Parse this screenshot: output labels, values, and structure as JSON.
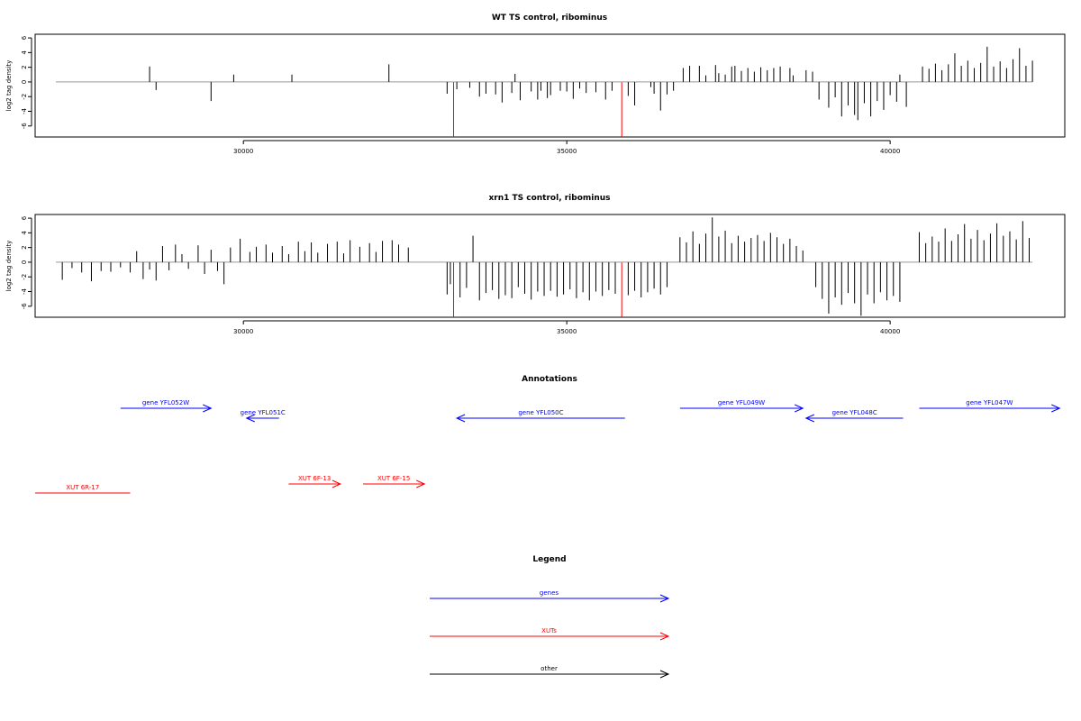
{
  "colors": {
    "axis": "#000000",
    "baseline": "#999999",
    "bar": "#000000",
    "marker": "#ff0000",
    "gene": "#0000ff",
    "xut": "#ff0000",
    "other": "#000000"
  },
  "annotations": {
    "title": "Annotations",
    "genes": [
      {
        "label": "gene YFL052W",
        "start": 28100,
        "end": 29500,
        "strand": "+",
        "row": 0
      },
      {
        "label": "gene YFL051C",
        "start": 30050,
        "end": 30550,
        "strand": "-",
        "row": 1
      },
      {
        "label": "gene YFL050C",
        "start": 33300,
        "end": 35900,
        "strand": "-",
        "row": 1
      },
      {
        "label": "gene YFL049W",
        "start": 36750,
        "end": 38650,
        "strand": "+",
        "row": 0
      },
      {
        "label": "gene YFL048C",
        "start": 38700,
        "end": 40200,
        "strand": "-",
        "row": 1
      },
      {
        "label": "gene YFL047W",
        "start": 40450,
        "end": 42620,
        "strand": "+",
        "row": 0
      }
    ],
    "xuts": [
      {
        "label": "XUT 6R-17",
        "start": 26780,
        "end": 28250,
        "strand": "none",
        "row": 1
      },
      {
        "label": "XUT 6F-13",
        "start": 30700,
        "end": 31500,
        "strand": "+",
        "row": 0
      },
      {
        "label": "XUT 6F-15",
        "start": 31850,
        "end": 32800,
        "strand": "+",
        "row": 0
      }
    ]
  },
  "legend": {
    "title": "Legend",
    "items": [
      {
        "label": "genes",
        "color": "gene"
      },
      {
        "label": "XUTs",
        "color": "xut"
      },
      {
        "label": "other",
        "color": "other"
      }
    ]
  },
  "chart_data": [
    {
      "type": "bar",
      "title": "WT TS control, ribominus",
      "ylabel": "log2 tag density",
      "xlim": [
        26780,
        42700
      ],
      "ylim": [
        -7.5,
        6.5
      ],
      "xticks": [
        30000,
        35000,
        40000
      ],
      "yticks": [
        -6,
        -4,
        -2,
        0,
        2,
        4,
        6
      ],
      "baseline": [
        27100,
        42200
      ],
      "markers": [
        33250,
        35850
      ],
      "bars": [
        [
          28550,
          2.1
        ],
        [
          28650,
          -1.1
        ],
        [
          29500,
          -2.6
        ],
        [
          29850,
          1.0
        ],
        [
          30750,
          1.0
        ],
        [
          32250,
          2.4
        ],
        [
          33150,
          -1.6
        ],
        [
          33300,
          -1.0
        ],
        [
          33500,
          -0.8
        ],
        [
          33650,
          -2.0
        ],
        [
          33750,
          -1.6
        ],
        [
          33900,
          -1.7
        ],
        [
          34000,
          -2.8
        ],
        [
          34150,
          -1.5
        ],
        [
          34200,
          1.1
        ],
        [
          34280,
          -2.5
        ],
        [
          34450,
          -1.3
        ],
        [
          34550,
          -2.4
        ],
        [
          34600,
          -1.2
        ],
        [
          34700,
          -2.2
        ],
        [
          34750,
          -1.8
        ],
        [
          34900,
          -1.2
        ],
        [
          35000,
          -1.3
        ],
        [
          35100,
          -2.3
        ],
        [
          35200,
          -0.9
        ],
        [
          35300,
          -1.5
        ],
        [
          35450,
          -1.4
        ],
        [
          35600,
          -2.4
        ],
        [
          35700,
          -1.2
        ],
        [
          35950,
          -1.9
        ],
        [
          36050,
          -3.2
        ],
        [
          36300,
          -0.7
        ],
        [
          36350,
          -1.6
        ],
        [
          36450,
          -3.9
        ],
        [
          36550,
          -1.7
        ],
        [
          36650,
          -1.2
        ],
        [
          36800,
          1.9
        ],
        [
          36900,
          2.2
        ],
        [
          37050,
          2.2
        ],
        [
          37150,
          0.9
        ],
        [
          37300,
          2.3
        ],
        [
          37350,
          1.2
        ],
        [
          37450,
          1.0
        ],
        [
          37550,
          2.1
        ],
        [
          37600,
          2.2
        ],
        [
          37700,
          1.5
        ],
        [
          37800,
          1.9
        ],
        [
          37900,
          1.4
        ],
        [
          38000,
          2.0
        ],
        [
          38100,
          1.6
        ],
        [
          38200,
          1.9
        ],
        [
          38300,
          2.1
        ],
        [
          38450,
          1.9
        ],
        [
          38500,
          0.9
        ],
        [
          38700,
          1.6
        ],
        [
          38800,
          1.4
        ],
        [
          38900,
          -2.4
        ],
        [
          39050,
          -3.5
        ],
        [
          39150,
          -2.1
        ],
        [
          39250,
          -4.7
        ],
        [
          39350,
          -3.2
        ],
        [
          39450,
          -4.5
        ],
        [
          39500,
          -5.2
        ],
        [
          39600,
          -2.9
        ],
        [
          39700,
          -4.7
        ],
        [
          39800,
          -2.6
        ],
        [
          39900,
          -3.8
        ],
        [
          40000,
          -1.8
        ],
        [
          40100,
          -2.7
        ],
        [
          40150,
          1.0
        ],
        [
          40250,
          -3.4
        ],
        [
          40500,
          2.1
        ],
        [
          40600,
          1.8
        ],
        [
          40700,
          2.5
        ],
        [
          40800,
          1.6
        ],
        [
          40900,
          2.4
        ],
        [
          41000,
          3.9
        ],
        [
          41100,
          2.2
        ],
        [
          41200,
          2.9
        ],
        [
          41300,
          1.9
        ],
        [
          41400,
          2.6
        ],
        [
          41500,
          4.8
        ],
        [
          41600,
          2.1
        ],
        [
          41700,
          2.8
        ],
        [
          41800,
          1.9
        ],
        [
          41900,
          3.1
        ],
        [
          42000,
          4.6
        ],
        [
          42100,
          2.2
        ],
        [
          42200,
          2.9
        ]
      ]
    },
    {
      "type": "bar",
      "title": "xrn1 TS control, ribominus",
      "ylabel": "log2 tag density",
      "xlim": [
        26780,
        42700
      ],
      "ylim": [
        -7.5,
        6.5
      ],
      "xticks": [
        30000,
        35000,
        40000
      ],
      "yticks": [
        -6,
        -4,
        -2,
        0,
        2,
        4,
        6
      ],
      "baseline": [
        27100,
        42200
      ],
      "markers": [
        33250,
        35850
      ],
      "bars": [
        [
          27200,
          -2.4
        ],
        [
          27350,
          -0.8
        ],
        [
          27500,
          -1.4
        ],
        [
          27650,
          -2.6
        ],
        [
          27800,
          -1.2
        ],
        [
          27950,
          -1.3
        ],
        [
          28100,
          -0.7
        ],
        [
          28250,
          -1.4
        ],
        [
          28350,
          1.5
        ],
        [
          28450,
          -2.3
        ],
        [
          28550,
          -1.0
        ],
        [
          28650,
          -2.5
        ],
        [
          28750,
          2.2
        ],
        [
          28850,
          -1.1
        ],
        [
          28950,
          2.4
        ],
        [
          29050,
          1.1
        ],
        [
          29150,
          -0.9
        ],
        [
          29300,
          2.3
        ],
        [
          29400,
          -1.6
        ],
        [
          29500,
          1.7
        ],
        [
          29600,
          -1.2
        ],
        [
          29700,
          -3.0
        ],
        [
          29800,
          2.0
        ],
        [
          29950,
          3.2
        ],
        [
          30100,
          1.4
        ],
        [
          30200,
          2.1
        ],
        [
          30350,
          2.4
        ],
        [
          30450,
          1.3
        ],
        [
          30600,
          2.2
        ],
        [
          30700,
          1.1
        ],
        [
          30850,
          2.8
        ],
        [
          30950,
          1.5
        ],
        [
          31050,
          2.7
        ],
        [
          31150,
          1.3
        ],
        [
          31300,
          2.5
        ],
        [
          31450,
          2.8
        ],
        [
          31550,
          1.2
        ],
        [
          31650,
          3.0
        ],
        [
          31800,
          2.1
        ],
        [
          31950,
          2.6
        ],
        [
          32050,
          1.4
        ],
        [
          32150,
          2.9
        ],
        [
          32300,
          3.0
        ],
        [
          32400,
          2.4
        ],
        [
          32550,
          2.0
        ],
        [
          33150,
          -4.4
        ],
        [
          33200,
          -3.0
        ],
        [
          33350,
          -4.8
        ],
        [
          33450,
          -3.5
        ],
        [
          33550,
          3.6
        ],
        [
          33650,
          -5.2
        ],
        [
          33750,
          -4.2
        ],
        [
          33850,
          -3.8
        ],
        [
          33950,
          -5.0
        ],
        [
          34050,
          -4.5
        ],
        [
          34150,
          -4.9
        ],
        [
          34250,
          -3.4
        ],
        [
          34350,
          -4.3
        ],
        [
          34450,
          -5.1
        ],
        [
          34550,
          -4.0
        ],
        [
          34650,
          -4.6
        ],
        [
          34750,
          -3.9
        ],
        [
          34850,
          -4.7
        ],
        [
          34950,
          -4.4
        ],
        [
          35050,
          -3.7
        ],
        [
          35150,
          -4.9
        ],
        [
          35250,
          -4.1
        ],
        [
          35350,
          -5.2
        ],
        [
          35450,
          -4.0
        ],
        [
          35550,
          -4.6
        ],
        [
          35650,
          -3.8
        ],
        [
          35750,
          -4.3
        ],
        [
          35950,
          -4.5
        ],
        [
          36050,
          -3.9
        ],
        [
          36150,
          -4.8
        ],
        [
          36250,
          -4.1
        ],
        [
          36350,
          -3.6
        ],
        [
          36450,
          -4.4
        ],
        [
          36550,
          -3.4
        ],
        [
          36750,
          3.4
        ],
        [
          36850,
          2.7
        ],
        [
          36950,
          4.2
        ],
        [
          37050,
          2.5
        ],
        [
          37150,
          3.9
        ],
        [
          37250,
          6.1
        ],
        [
          37350,
          3.5
        ],
        [
          37450,
          4.3
        ],
        [
          37550,
          2.6
        ],
        [
          37650,
          3.6
        ],
        [
          37750,
          2.8
        ],
        [
          37850,
          3.3
        ],
        [
          37950,
          3.7
        ],
        [
          38050,
          2.9
        ],
        [
          38150,
          4.0
        ],
        [
          38250,
          3.4
        ],
        [
          38350,
          2.5
        ],
        [
          38450,
          3.2
        ],
        [
          38550,
          2.2
        ],
        [
          38650,
          1.6
        ],
        [
          38850,
          -3.4
        ],
        [
          38950,
          -5.0
        ],
        [
          39050,
          -7.0
        ],
        [
          39150,
          -4.8
        ],
        [
          39250,
          -5.8
        ],
        [
          39350,
          -4.2
        ],
        [
          39450,
          -5.6
        ],
        [
          39550,
          -7.3
        ],
        [
          39650,
          -4.4
        ],
        [
          39750,
          -5.6
        ],
        [
          39850,
          -4.1
        ],
        [
          39950,
          -5.2
        ],
        [
          40050,
          -4.6
        ],
        [
          40150,
          -5.4
        ],
        [
          40450,
          4.1
        ],
        [
          40550,
          2.6
        ],
        [
          40650,
          3.5
        ],
        [
          40750,
          2.8
        ],
        [
          40850,
          4.6
        ],
        [
          40950,
          2.9
        ],
        [
          41050,
          3.8
        ],
        [
          41150,
          5.2
        ],
        [
          41250,
          3.2
        ],
        [
          41350,
          4.4
        ],
        [
          41450,
          3.0
        ],
        [
          41550,
          3.9
        ],
        [
          41650,
          5.3
        ],
        [
          41750,
          3.6
        ],
        [
          41850,
          4.2
        ],
        [
          41950,
          3.1
        ],
        [
          42050,
          5.6
        ],
        [
          42150,
          3.3
        ]
      ]
    }
  ]
}
